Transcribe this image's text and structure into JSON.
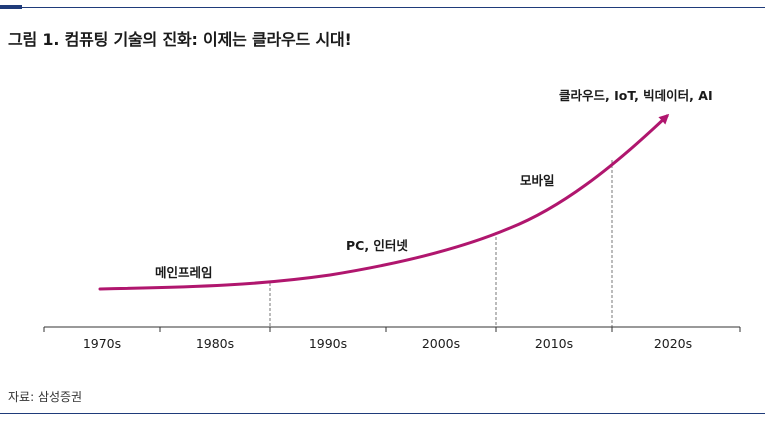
{
  "title": "그림 1. 컴퓨팅 기술의 진화: 이제는 클라우드 시대!",
  "source": "자료: 삼성증권",
  "colors": {
    "curve": "#b0166e",
    "rule": "#1f3b7a",
    "axis": "#333333"
  },
  "axis": {
    "ticks": [
      "1970s",
      "1980s",
      "1990s",
      "2000s",
      "2010s",
      "2020s"
    ]
  },
  "stages": [
    {
      "label": "메인프레임"
    },
    {
      "label": "PC, 인터넷"
    },
    {
      "label": "모바일"
    },
    {
      "label": "클라우드, IoT,  빅데이터, AI"
    }
  ]
}
